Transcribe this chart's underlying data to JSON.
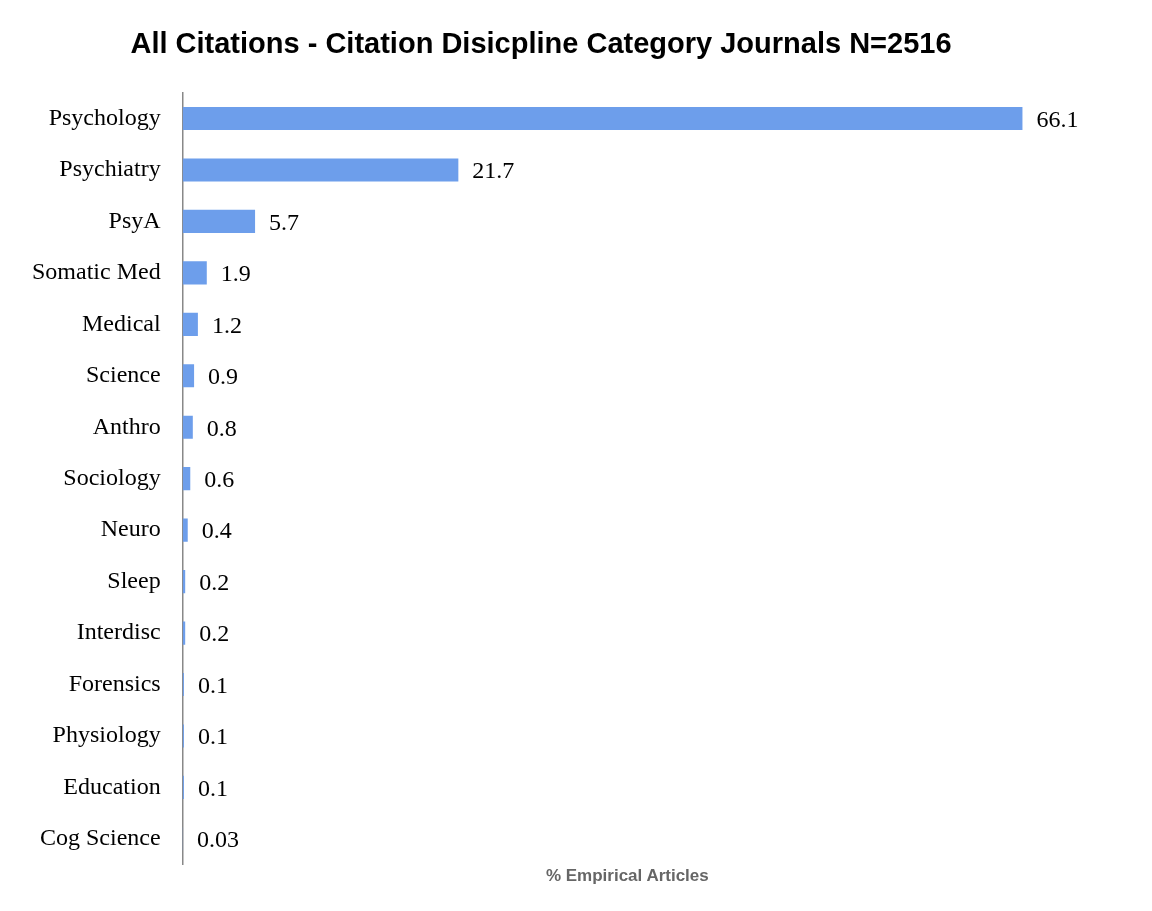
{
  "chart_data": {
    "type": "bar",
    "orientation": "horizontal",
    "title": "All Citations - Citation Disicpline Category Journals N=2516",
    "xlabel": "% Empirical Articles",
    "categories": [
      "Psychology",
      "Psychiatry",
      "PsyA",
      "Somatic Med",
      "Medical",
      "Science",
      "Anthro",
      "Sociology",
      "Neuro",
      "Sleep",
      "Interdisc",
      "Forensics",
      "Physiology",
      "Education",
      "Cog Science"
    ],
    "values": [
      66.1,
      21.7,
      5.7,
      1.9,
      1.2,
      0.9,
      0.8,
      0.6,
      0.4,
      0.2,
      0.2,
      0.1,
      0.1,
      0.1,
      0.03
    ],
    "color": "#6d9eeb",
    "data_labels": true,
    "grid": false,
    "legend": false,
    "tick_labels": "y"
  }
}
